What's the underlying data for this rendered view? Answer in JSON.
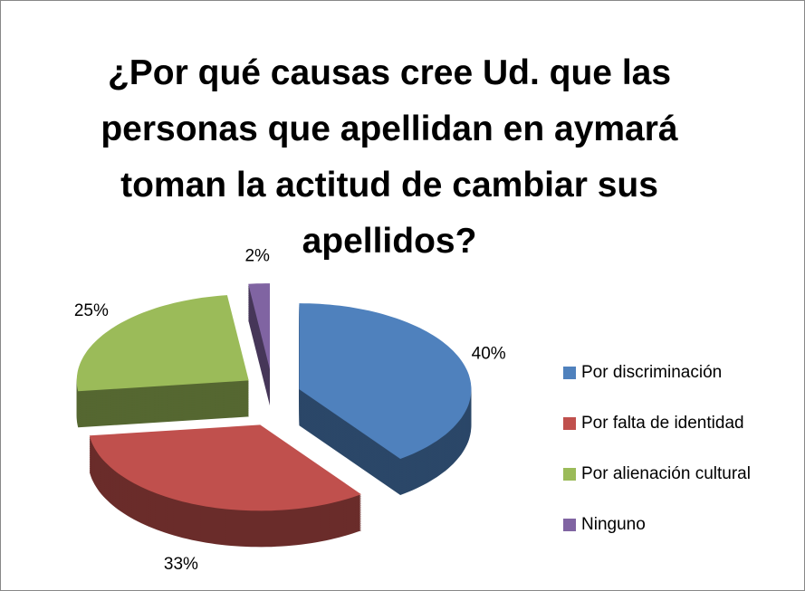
{
  "chart_data": {
    "type": "pie3d",
    "title": "¿Por qué causas cree Ud. que las personas que apellidan en aymará toman la actitud de cambiar sus apellidos?",
    "categories": [
      "Por discriminación",
      "Por falta de identidad",
      "Por alienación cultural",
      "Ninguno"
    ],
    "values": [
      40,
      33,
      25,
      2
    ],
    "value_labels": [
      "40%",
      "33%",
      "25%",
      "2%"
    ],
    "colors": [
      "#4f81bd",
      "#c0504d",
      "#9bbb59",
      "#8064a2"
    ],
    "legend": "right",
    "exploded": true
  }
}
